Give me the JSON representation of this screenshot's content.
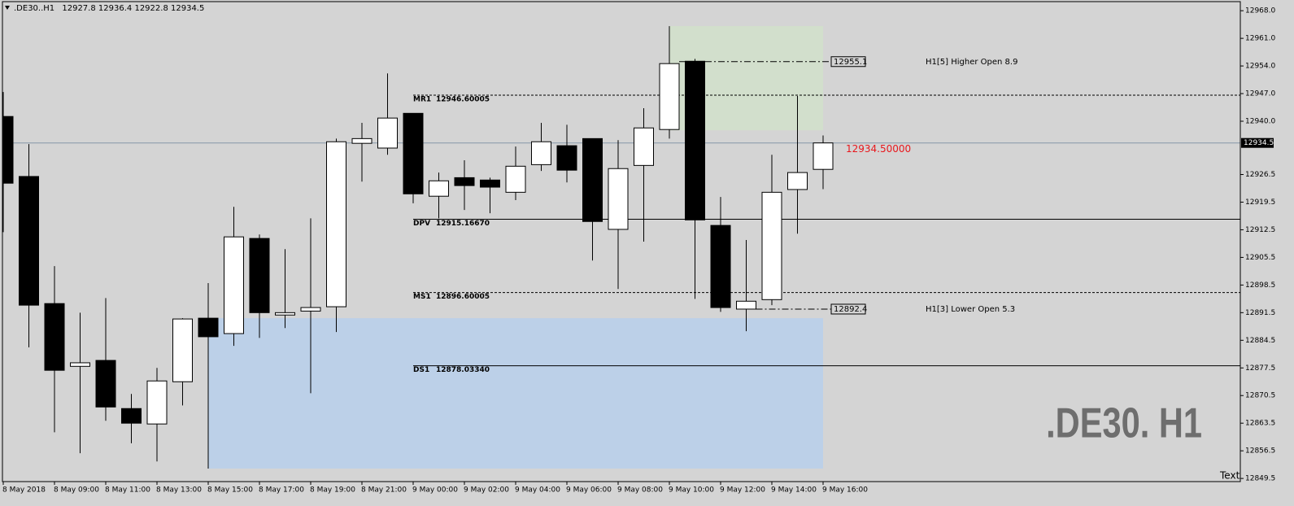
{
  "chart_data": {
    "type": "candlestick",
    "title": ".DE30..H1",
    "categories": [
      "8 May 2018",
      null,
      "8 May 09:00",
      null,
      "8 May 11:00",
      null,
      "8 May 13:00",
      null,
      "8 May 15:00",
      null,
      "8 May 17:00",
      null,
      "8 May 19:00",
      null,
      "8 May 21:00",
      null,
      "9 May 00:00",
      null,
      "9 May 02:00",
      null,
      "9 May 04:00",
      null,
      "9 May 06:00",
      null,
      "9 May 08:00",
      null,
      "9 May 10:00",
      null,
      "9 May 12:00",
      null,
      "9 May 14:00",
      null,
      "9 May 16:00"
    ],
    "open": [
      12941.2,
      12926.0,
      12893.8,
      12877.9,
      12879.4,
      12867.2,
      12863.3,
      12874.0,
      12890.1,
      12886.2,
      12910.3,
      12890.9,
      12891.9,
      12893.0,
      12934.4,
      12933.2,
      12942.0,
      12921.0,
      12925.7,
      12925.1,
      12922.0,
      12929.0,
      12933.8,
      12935.6,
      12912.6,
      12928.8,
      12937.9,
      12955.2,
      12913.6,
      12892.4,
      12894.8,
      12922.7,
      12927.8
    ],
    "high": [
      12947.4,
      12934.2,
      12903.3,
      12891.5,
      12895.2,
      12870.9,
      12877.5,
      12890.1,
      12899.0,
      12918.3,
      12911.3,
      12907.6,
      12915.4,
      12935.6,
      12939.6,
      12952.1,
      12942.0,
      12927.0,
      12930.1,
      12925.7,
      12933.6,
      12939.6,
      12939.1,
      12935.6,
      12935.2,
      12943.3,
      12964.1,
      12955.8,
      12920.8,
      12909.9,
      12931.5,
      12946.4,
      12936.4
    ],
    "low": [
      12911.9,
      12882.7,
      12861.2,
      12855.9,
      12864.1,
      12858.4,
      12853.8,
      12868.0,
      12852.0,
      12883.1,
      12885.1,
      12887.6,
      12871.1,
      12886.6,
      12924.7,
      12931.5,
      12919.2,
      12915.4,
      12917.5,
      12916.7,
      12920.0,
      12927.4,
      12924.5,
      12904.7,
      12897.5,
      12909.5,
      12935.6,
      12895.0,
      12891.7,
      12886.8,
      12893.4,
      12911.5,
      12922.8
    ],
    "close": [
      12924.3,
      12893.4,
      12876.9,
      12878.8,
      12867.6,
      12863.5,
      12874.2,
      12889.9,
      12885.4,
      12910.7,
      12891.5,
      12891.5,
      12892.8,
      12934.8,
      12935.6,
      12940.8,
      12921.6,
      12924.9,
      12923.7,
      12923.3,
      12928.6,
      12934.8,
      12927.6,
      12914.6,
      12928.0,
      12938.3,
      12954.6,
      12915.0,
      12892.8,
      12894.4,
      12922.0,
      12927.0,
      12934.5
    ],
    "ylim": [
      12848.7,
      12970.3
    ],
    "yticks": [
      {
        "value": 12968.0,
        "label": "12968.0"
      },
      {
        "value": 12961.0,
        "label": "12961.0"
      },
      {
        "value": 12954.0,
        "label": "12954.0"
      },
      {
        "value": 12947.0,
        "label": "12947.0"
      },
      {
        "value": 12940.0,
        "label": "12940.0"
      },
      12926.5,
      12919.5,
      12912.5,
      12905.5,
      12898.5,
      12891.5,
      12884.5,
      12877.5,
      12870.5,
      12863.5,
      12856.5,
      12849.5
    ],
    "price_line": {
      "value": 12934.5,
      "label": "12934.50000",
      "color": "#8597a8",
      "label_color": "#e8171c"
    },
    "levels": [
      {
        "name": "MR1",
        "value": 12946.60005,
        "style": "dashed"
      },
      {
        "name": "DPV",
        "value": 12915.1667,
        "value_label": "12915.16670",
        "style": "solid"
      },
      {
        "name": "MS1",
        "value": 12896.60005,
        "style": "dashed"
      },
      {
        "name": "DS1",
        "value": 12878.0334,
        "value_label": "12878.03340",
        "style": "solid"
      }
    ],
    "zones": [
      {
        "top": 12964.1,
        "bottom": 12937.7,
        "start": "9 May 10:00",
        "end": "9 May 16:00",
        "color": "#d2dfcc"
      },
      {
        "top": 12890.1,
        "bottom": 12852.0,
        "start": "8 May 15:00",
        "end": "9 May 16:00",
        "color": "#bcd0e8"
      }
    ],
    "open_markers": [
      {
        "value": 12955.1,
        "text": "H1[5] Higher Open 8.9"
      },
      {
        "value": 12892.4,
        "text": "H1[3] Lower Open 5.3"
      }
    ],
    "watermark": ".DE30. H1",
    "corner_label": "Text"
  }
}
